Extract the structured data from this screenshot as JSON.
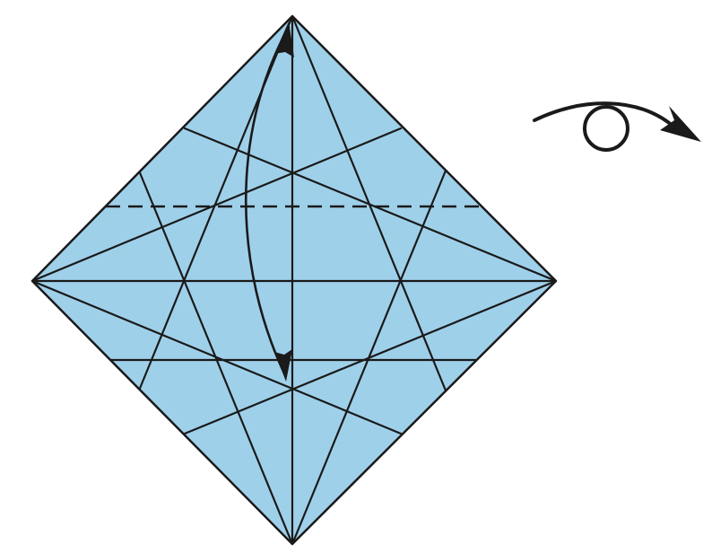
{
  "diagram": {
    "paper_color": "#9fd0ea",
    "line_color": "#1a1a1a",
    "background_color": "#ffffff",
    "symbols": [
      {
        "name": "valley-fold-line",
        "style": "dashed"
      },
      {
        "name": "fold-down-arrow",
        "style": "double-headed curved"
      },
      {
        "name": "turn-over-icon",
        "style": "loop arrow"
      }
    ]
  }
}
